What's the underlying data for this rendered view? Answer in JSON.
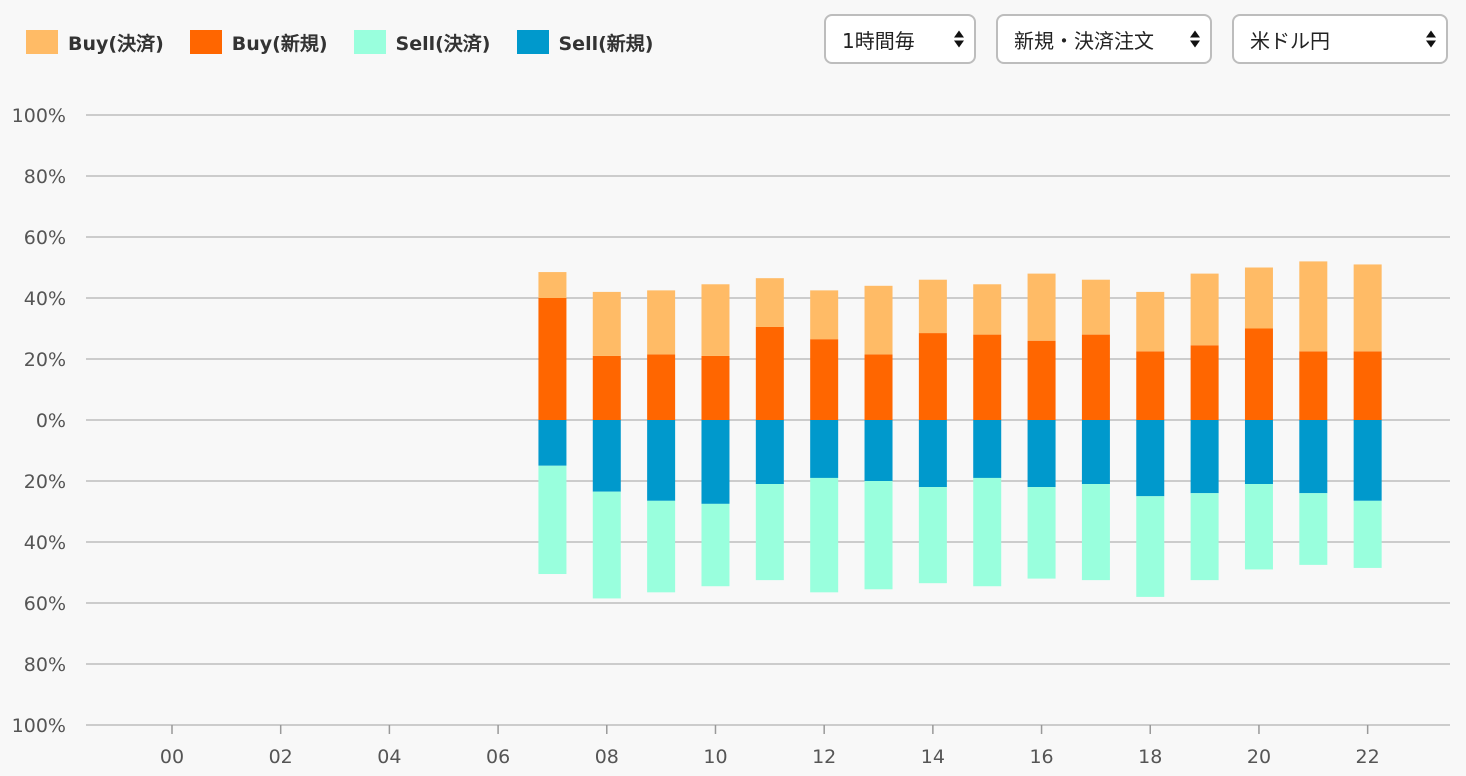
{
  "legend": [
    {
      "label": "Buy(決済)",
      "color": "#ffbb66"
    },
    {
      "label": "Buy(新規)",
      "color": "#ff6600"
    },
    {
      "label": "Sell(決済)",
      "color": "#99ffdd"
    },
    {
      "label": "Sell(新規)",
      "color": "#0099cc"
    }
  ],
  "controls": {
    "interval": "1時間毎",
    "order_type": "新規・決済注文",
    "currency_pair": "米ドル円"
  },
  "chart_data": {
    "type": "bar",
    "stacked": true,
    "grid": true,
    "legend_position": "top-left",
    "y_ticks": [
      "100%",
      "80%",
      "60%",
      "40%",
      "20%",
      "0%",
      "20%",
      "40%",
      "60%",
      "80%",
      "100%"
    ],
    "x_ticks": [
      "00",
      "02",
      "04",
      "06",
      "08",
      "10",
      "12",
      "14",
      "16",
      "18",
      "20",
      "22"
    ],
    "ylim": [
      -100,
      100
    ],
    "xlim": [
      0,
      23
    ],
    "x": [
      7,
      8,
      9,
      10,
      11,
      12,
      13,
      14,
      15,
      16,
      17,
      18,
      19,
      20,
      21,
      22
    ],
    "series": [
      {
        "name": "Buy(新規)",
        "color": "#ff6600",
        "values": [
          40,
          21,
          21.5,
          21,
          30.5,
          26.5,
          21.5,
          28.5,
          28,
          26,
          28,
          22.5,
          24.5,
          30,
          22.5,
          22.5
        ]
      },
      {
        "name": "Buy(決済)",
        "color": "#ffbb66",
        "values": [
          8.5,
          21,
          21,
          23.5,
          16,
          16,
          22.5,
          17.5,
          16.5,
          22,
          18,
          19.5,
          23.5,
          20,
          29.5,
          28.5
        ]
      },
      {
        "name": "Sell(新規)",
        "color": "#0099cc",
        "values": [
          -15,
          -23.5,
          -26.5,
          -27.5,
          -21,
          -19,
          -20,
          -22,
          -19,
          -22,
          -21,
          -25,
          -24,
          -21,
          -24,
          -26.5
        ]
      },
      {
        "name": "Sell(決済)",
        "color": "#99ffdd",
        "values": [
          -35.5,
          -35,
          -30,
          -27,
          -31.5,
          -37.5,
          -35.5,
          -31.5,
          -35.5,
          -30,
          -31.5,
          -33,
          -28.5,
          -28,
          -23.5,
          -22
        ]
      }
    ]
  }
}
